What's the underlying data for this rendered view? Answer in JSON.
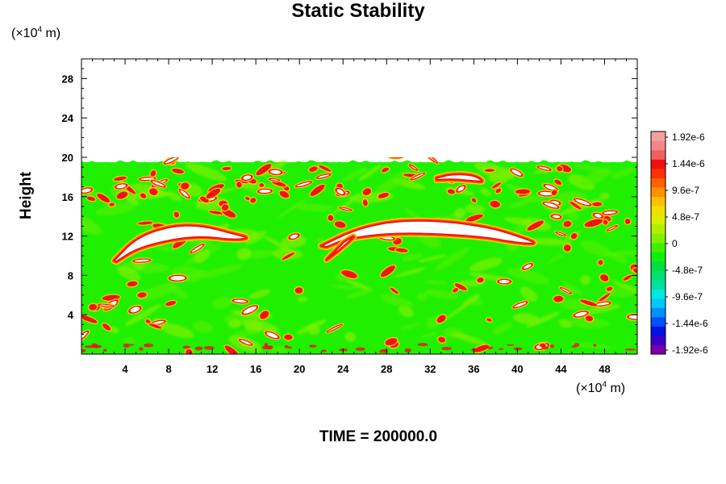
{
  "chart_data": {
    "type": "heatmap",
    "title": "Static Stability",
    "ylabel": "Height",
    "xlabel": "",
    "x_unit_prefix": "(×10",
    "x_unit_exp": "4",
    "x_unit_suffix": " m)",
    "y_unit_prefix": "(×10",
    "y_unit_exp": "4",
    "y_unit_suffix": " m)",
    "xlim": [
      0,
      51
    ],
    "ylim": [
      0,
      30
    ],
    "x_ticks": [
      "4",
      "8",
      "12",
      "16",
      "20",
      "24",
      "28",
      "32",
      "36",
      "40",
      "44",
      "48"
    ],
    "x_tick_values": [
      4,
      8,
      12,
      16,
      20,
      24,
      28,
      32,
      36,
      40,
      44,
      48
    ],
    "y_ticks": [
      "4",
      "8",
      "12",
      "16",
      "20",
      "24",
      "28"
    ],
    "y_tick_values": [
      4,
      8,
      12,
      16,
      20,
      24,
      28
    ],
    "field_top": 19.5,
    "colorbar": {
      "labels": [
        "1.92e-6",
        "1.44e-6",
        "9.6e-7",
        "4.8e-7",
        "0",
        "-4.8e-7",
        "-9.6e-7",
        "-1.44e-6",
        "-1.92e-6"
      ],
      "min": -1.92e-06,
      "max": 1.92e-06,
      "colors": [
        "#7a00a8",
        "#3a00c8",
        "#0010e0",
        "#0050ff",
        "#0090ff",
        "#00c8ff",
        "#00e8e0",
        "#00e0a0",
        "#00e070",
        "#00e040",
        "#10f010",
        "#40f000",
        "#80f000",
        "#b0f000",
        "#d8f000",
        "#f0e000",
        "#ffc000",
        "#ff9000",
        "#ff6000",
        "#ff3000",
        "#f01010",
        "#f06060",
        "#f08888",
        "#f4a0a0"
      ]
    },
    "features": [
      {
        "name": "white stable arch left",
        "x": [
          3,
          5,
          8,
          11,
          14,
          15.5,
          14,
          11,
          8,
          5,
          3.2
        ],
        "y": [
          9.5,
          11.8,
          13,
          13.1,
          12.2,
          11.8,
          11.6,
          12,
          11.6,
          10.7,
          9.4
        ]
      },
      {
        "name": "white stable arch center",
        "x": [
          22,
          25,
          28,
          31,
          34,
          36,
          38,
          40,
          42,
          40,
          37,
          33,
          29,
          26,
          24,
          22.5
        ],
        "y": [
          11,
          12.6,
          13.4,
          13.6,
          13.4,
          13.1,
          12.7,
          12,
          11.2,
          11.3,
          11.9,
          12.2,
          12.3,
          12,
          11.6,
          10.9
        ]
      },
      {
        "name": "white stable wedge",
        "x": [
          22.5,
          23.8,
          25.3,
          24.1
        ],
        "y": [
          9.6,
          10.7,
          12.2,
          11.4
        ]
      },
      {
        "name": "white upper band right",
        "x": [
          32.6,
          34,
          36,
          37,
          36,
          34,
          32.6
        ],
        "y": [
          17.9,
          18.3,
          18.2,
          17.5,
          17.6,
          17.8,
          17.7
        ]
      }
    ],
    "time_label": "TIME = 200000.0"
  }
}
